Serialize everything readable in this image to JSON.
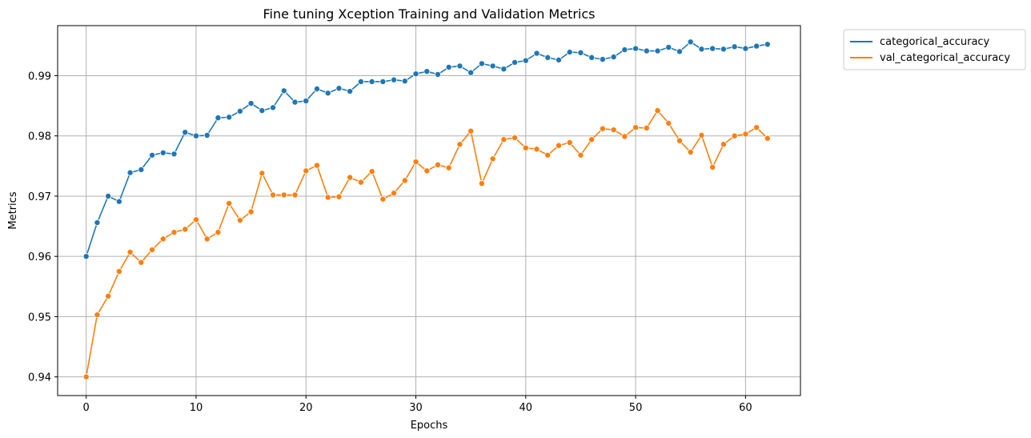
{
  "chart_data": {
    "type": "line",
    "title": "Fine tuning Xception Training and Validation Metrics",
    "xlabel": "Epochs",
    "ylabel": "Metrics",
    "xlim": [
      -2.6,
      65
    ],
    "ylim": [
      0.9369,
      0.9983
    ],
    "xticks": [
      0,
      10,
      20,
      30,
      40,
      50,
      60
    ],
    "yticks": [
      0.94,
      0.95,
      0.96,
      0.97,
      0.98,
      0.99
    ],
    "ytick_labels": [
      "0.94",
      "0.95",
      "0.96",
      "0.97",
      "0.98",
      "0.99"
    ],
    "grid": true,
    "legend_position": "outside top-right",
    "markers": true,
    "x": [
      0,
      1,
      2,
      3,
      4,
      5,
      6,
      7,
      8,
      9,
      10,
      11,
      12,
      13,
      14,
      15,
      16,
      17,
      18,
      19,
      20,
      21,
      22,
      23,
      24,
      25,
      26,
      27,
      28,
      29,
      30,
      31,
      32,
      33,
      34,
      35,
      36,
      37,
      38,
      39,
      40,
      41,
      42,
      43,
      44,
      45,
      46,
      47,
      48,
      49,
      50,
      51,
      52,
      53,
      54,
      55,
      56,
      57,
      58,
      59,
      60,
      61,
      62
    ],
    "series": [
      {
        "name": "categorical_accuracy",
        "color": "#1f77b4",
        "values": [
          0.96,
          0.9656,
          0.97,
          0.9691,
          0.9739,
          0.9744,
          0.9768,
          0.9772,
          0.977,
          0.9806,
          0.98,
          0.9801,
          0.983,
          0.9831,
          0.9841,
          0.9854,
          0.9842,
          0.9847,
          0.9875,
          0.9856,
          0.9858,
          0.9878,
          0.9871,
          0.9879,
          0.9874,
          0.989,
          0.989,
          0.989,
          0.9893,
          0.9891,
          0.9903,
          0.9907,
          0.9902,
          0.9914,
          0.9916,
          0.9905,
          0.992,
          0.9916,
          0.9911,
          0.9922,
          0.9925,
          0.9937,
          0.993,
          0.9926,
          0.9939,
          0.9938,
          0.993,
          0.9927,
          0.9931,
          0.9943,
          0.9945,
          0.9941,
          0.9941,
          0.9947,
          0.994,
          0.9956,
          0.9944,
          0.9945,
          0.9944,
          0.9948,
          0.9945,
          0.9949,
          0.9952
        ]
      },
      {
        "name": "val_categorical_accuracy",
        "color": "#ff7f0e",
        "values": [
          0.94,
          0.9503,
          0.9534,
          0.9575,
          0.9607,
          0.959,
          0.9611,
          0.9629,
          0.964,
          0.9645,
          0.9661,
          0.9629,
          0.964,
          0.9688,
          0.966,
          0.9674,
          0.9738,
          0.9702,
          0.9702,
          0.9702,
          0.9742,
          0.9751,
          0.9698,
          0.9699,
          0.9731,
          0.9723,
          0.9741,
          0.9695,
          0.9705,
          0.9726,
          0.9757,
          0.9742,
          0.9752,
          0.9747,
          0.9786,
          0.9808,
          0.9721,
          0.9762,
          0.9794,
          0.9797,
          0.978,
          0.9778,
          0.9768,
          0.9784,
          0.9789,
          0.9768,
          0.9794,
          0.9812,
          0.981,
          0.9799,
          0.9814,
          0.9813,
          0.9842,
          0.9821,
          0.9792,
          0.9773,
          0.9801,
          0.9748,
          0.9786,
          0.98,
          0.9803,
          0.9814,
          0.9796
        ]
      }
    ]
  }
}
